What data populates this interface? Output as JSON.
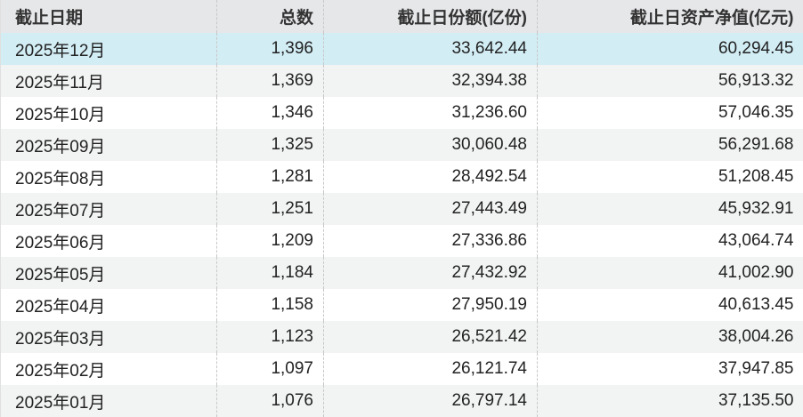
{
  "table": {
    "headers": [
      "截止日期",
      "总数",
      "截止日份额(亿份)",
      "截止日资产净值(亿元)"
    ],
    "rows": [
      [
        "2025年12月",
        "1,396",
        "33,642.44",
        "60,294.45"
      ],
      [
        "2025年11月",
        "1,369",
        "32,394.38",
        "56,913.32"
      ],
      [
        "2025年10月",
        "1,346",
        "31,236.60",
        "57,046.35"
      ],
      [
        "2025年09月",
        "1,325",
        "30,060.48",
        "56,291.68"
      ],
      [
        "2025年08月",
        "1,281",
        "28,492.54",
        "51,208.45"
      ],
      [
        "2025年07月",
        "1,251",
        "27,443.49",
        "45,932.91"
      ],
      [
        "2025年06月",
        "1,209",
        "27,336.86",
        "43,064.74"
      ],
      [
        "2025年05月",
        "1,184",
        "27,432.92",
        "41,002.90"
      ],
      [
        "2025年04月",
        "1,158",
        "27,950.19",
        "40,613.45"
      ],
      [
        "2025年03月",
        "1,123",
        "26,521.42",
        "38,004.26"
      ],
      [
        "2025年02月",
        "1,097",
        "26,121.74",
        "37,947.85"
      ],
      [
        "2025年01月",
        "1,076",
        "26,797.14",
        "37,135.50"
      ]
    ],
    "selected_row": 0
  },
  "colors": {
    "header_bg": "#e6e7e9",
    "selected_row_bg": "#d3edf5",
    "alt_row_bg": "#f2f4f3"
  }
}
